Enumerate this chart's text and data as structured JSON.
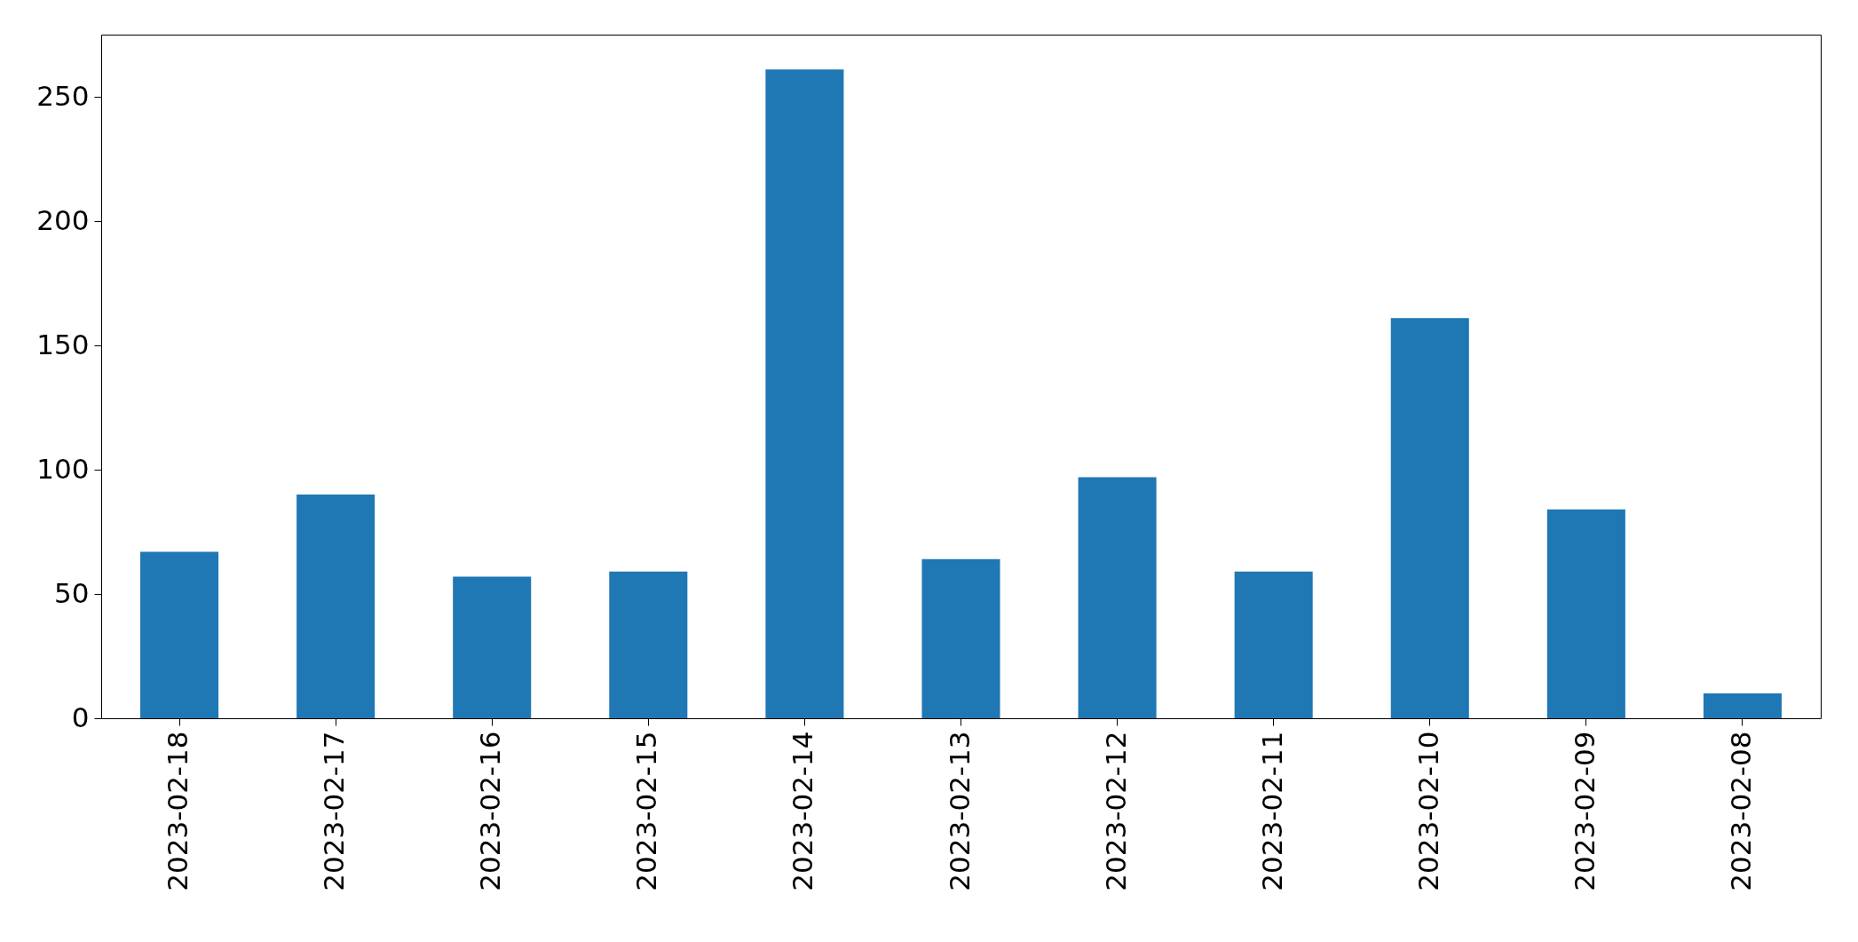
{
  "chart_data": {
    "type": "bar",
    "categories": [
      "2023-02-18",
      "2023-02-17",
      "2023-02-16",
      "2023-02-15",
      "2023-02-14",
      "2023-02-13",
      "2023-02-12",
      "2023-02-11",
      "2023-02-10",
      "2023-02-09",
      "2023-02-08"
    ],
    "values": [
      67,
      90,
      57,
      59,
      261,
      64,
      97,
      59,
      161,
      84,
      10
    ],
    "color": "#1f77b4",
    "ylim": [
      0,
      275
    ],
    "yticks": [
      0,
      50,
      100,
      150,
      200,
      250
    ],
    "grid": false
  }
}
